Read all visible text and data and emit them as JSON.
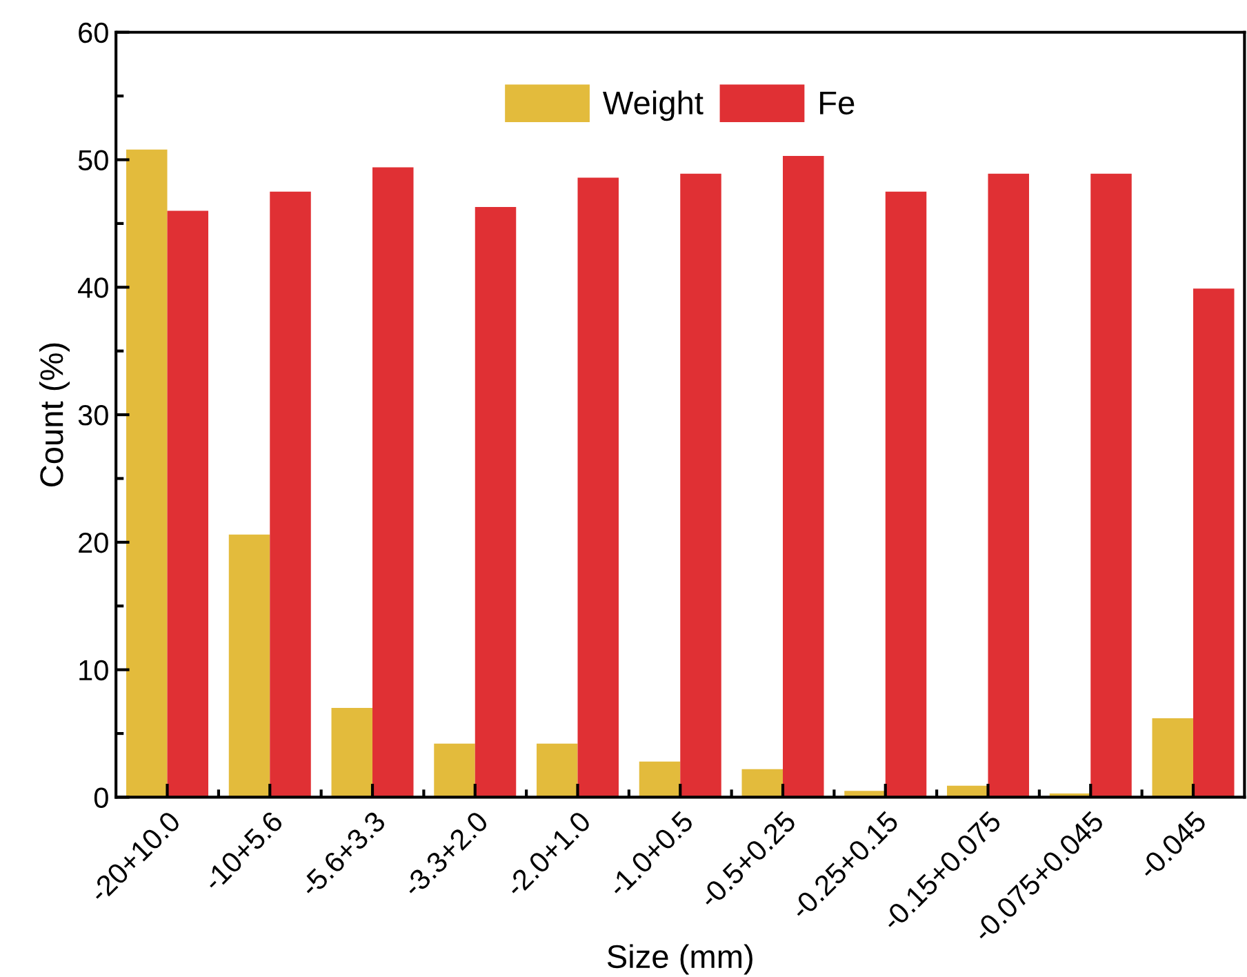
{
  "chart_data": {
    "type": "bar",
    "xlabel": "Size (mm)",
    "ylabel": "Count (%)",
    "categories": [
      "-20+10.0",
      "-10+5.6",
      "-5.6+3.3",
      "-3.3+2.0",
      "-2.0+1.0",
      "-1.0+0.5",
      "-0.5+0.25",
      "-0.25+0.15",
      "-0.15+0.075",
      "-0.075+0.045",
      "-0.045"
    ],
    "series": [
      {
        "name": "Weight",
        "color": "#e3bb3c",
        "values": [
          50.8,
          20.6,
          7.0,
          4.2,
          4.2,
          2.8,
          2.2,
          0.5,
          0.9,
          0.3,
          6.2
        ]
      },
      {
        "name": "Fe",
        "color": "#e03034",
        "values": [
          46.0,
          47.5,
          49.4,
          46.3,
          48.6,
          48.9,
          50.3,
          47.5,
          48.9,
          48.9,
          39.9
        ]
      }
    ],
    "ylim": [
      0,
      60
    ],
    "yticks": [
      0,
      10,
      20,
      30,
      40,
      50,
      60
    ],
    "grid": false,
    "legend": "top"
  }
}
